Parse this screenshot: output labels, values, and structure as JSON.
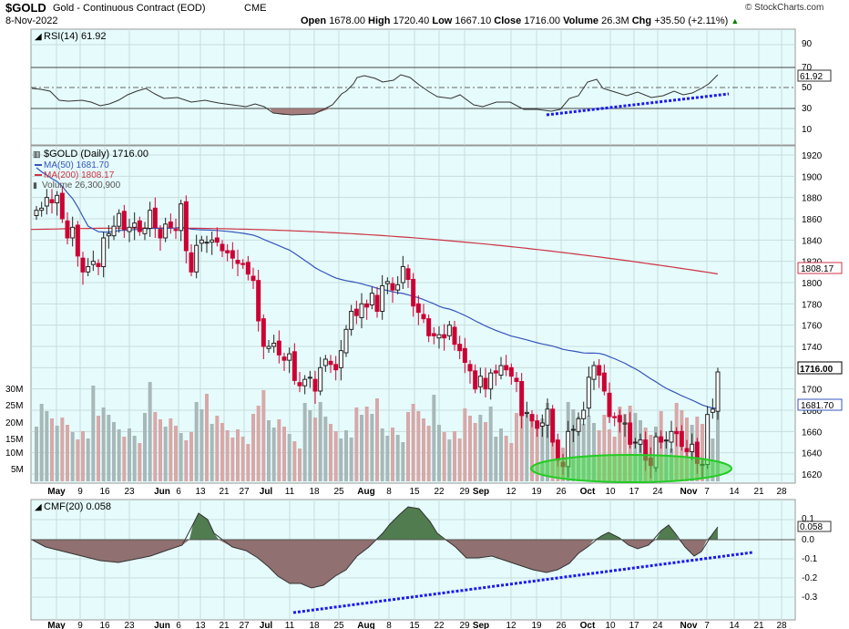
{
  "header": {
    "symbol": "$GOLD",
    "name": "Gold - Continuous Contract (EOD)",
    "exchange": "CME",
    "date": "8-Nov-2022",
    "watermark": "© StockCharts.com",
    "open_label": "Open",
    "open": "1678.00",
    "high_label": "High",
    "high": "1720.40",
    "low_label": "Low",
    "low": "1667.10",
    "close_label": "Close",
    "close": "1716.00",
    "volume_label": "Volume",
    "volume": "26.3M",
    "chg_label": "Chg",
    "chg": "+35.50 (+2.11%)",
    "up_color": "#008000",
    "down_color": "#cc0033"
  },
  "rsi": {
    "label": "RSI(14) 61.92",
    "value_badge": "61.92",
    "ticks": [
      "90",
      "70",
      "50",
      "30",
      "10"
    ],
    "overbought": 70,
    "oversold": 30,
    "mid": 50,
    "values": [
      48,
      47,
      47,
      47,
      44,
      42,
      41,
      41,
      41,
      40,
      39,
      38,
      38,
      37,
      38,
      39,
      39,
      41,
      42,
      42,
      44,
      44,
      43,
      42,
      41,
      40,
      39,
      38,
      37,
      37,
      34,
      33,
      33,
      33,
      33,
      33,
      33,
      34,
      35,
      38,
      42,
      48,
      56,
      62,
      67,
      68,
      68,
      67,
      64,
      63,
      64,
      63,
      63,
      63,
      63,
      62,
      61,
      61,
      61,
      62,
      63,
      64,
      64,
      64,
      63,
      62,
      61,
      60,
      59,
      56,
      51,
      48,
      46,
      43,
      42,
      42,
      42,
      40,
      38,
      38,
      36,
      36,
      36,
      35,
      35,
      36,
      37,
      40,
      44,
      46,
      48,
      49,
      49,
      46,
      44,
      42,
      40,
      44,
      44,
      44,
      44,
      44,
      44,
      44,
      44,
      44,
      44,
      44,
      54,
      61.92
    ]
  },
  "price": {
    "label": "$GOLD (Daily) 1716.00",
    "ma50_label": "MA(50) 1681.70",
    "ma200_label": "MA(200) 1808.17",
    "volume_label": "Volume 26,300,900",
    "ticks": [
      "1920",
      "1900",
      "1880",
      "1860",
      "1840",
      "1820",
      "1800",
      "1780",
      "1760",
      "1740",
      "1720",
      "1700",
      "1680",
      "1660",
      "1640",
      "1620"
    ],
    "last_badge": "1716.00",
    "ma50_badge": "1681.70",
    "ma200_badge": "1808.17",
    "ma50_color": "#3355bb",
    "ma200_color": "#cc3344",
    "volume_ticks": [
      "30M",
      "25M",
      "20M",
      "15M",
      "10M",
      "5M"
    ]
  },
  "cmf": {
    "label": "CMF(20) 0.058",
    "value_badge": "0.058",
    "ticks": [
      "0.1",
      "0.0",
      "-0.1",
      "-0.2",
      "-0.3"
    ]
  },
  "xaxis": {
    "labels": [
      "May",
      "9",
      "16",
      "23",
      "Jun",
      "6",
      "13",
      "21",
      "27",
      "Jul",
      "11",
      "18",
      "25",
      "Aug",
      "8",
      "15",
      "22",
      "29",
      "Sep",
      "12",
      "19",
      "26",
      "Oct",
      "10",
      "17",
      "24",
      "Nov",
      "7",
      "14",
      "21",
      "28"
    ]
  },
  "chart_data": {
    "type": "candlestick",
    "symbol": "$GOLD",
    "period": "daily",
    "dates": [
      "2022-05-02",
      "2022-05-03",
      "2022-05-04",
      "2022-05-05",
      "2022-05-06",
      "2022-05-09",
      "2022-05-10",
      "2022-05-11",
      "2022-05-12",
      "2022-05-13",
      "2022-05-16",
      "2022-05-17",
      "2022-05-18",
      "2022-05-19",
      "2022-05-20",
      "2022-05-23",
      "2022-05-24",
      "2022-05-25",
      "2022-05-26",
      "2022-05-27",
      "2022-05-31",
      "2022-06-01",
      "2022-06-02",
      "2022-06-03",
      "2022-06-06",
      "2022-06-07",
      "2022-06-08",
      "2022-06-09",
      "2022-06-10",
      "2022-06-13",
      "2022-06-14",
      "2022-06-15",
      "2022-06-16",
      "2022-06-17",
      "2022-06-21",
      "2022-06-22",
      "2022-06-23",
      "2022-06-24",
      "2022-06-27",
      "2022-06-28",
      "2022-06-29",
      "2022-06-30",
      "2022-07-01",
      "2022-07-05",
      "2022-07-06",
      "2022-07-07",
      "2022-07-08",
      "2022-07-11",
      "2022-07-12",
      "2022-07-13",
      "2022-07-14",
      "2022-07-15",
      "2022-07-18",
      "2022-07-19",
      "2022-07-20",
      "2022-07-21",
      "2022-07-22",
      "2022-07-25",
      "2022-07-26",
      "2022-07-27",
      "2022-07-28",
      "2022-07-29",
      "2022-08-01",
      "2022-08-02",
      "2022-08-03",
      "2022-08-04",
      "2022-08-05",
      "2022-08-08",
      "2022-08-09",
      "2022-08-10",
      "2022-08-11",
      "2022-08-12",
      "2022-08-15",
      "2022-08-16",
      "2022-08-17",
      "2022-08-18",
      "2022-08-19",
      "2022-08-22",
      "2022-08-23",
      "2022-08-24",
      "2022-08-25",
      "2022-08-26",
      "2022-08-29",
      "2022-08-30",
      "2022-08-31",
      "2022-09-01",
      "2022-09-02",
      "2022-09-06",
      "2022-09-07",
      "2022-09-08",
      "2022-09-09",
      "2022-09-12",
      "2022-09-13",
      "2022-09-14",
      "2022-09-15",
      "2022-09-16",
      "2022-09-19",
      "2022-09-20",
      "2022-09-21",
      "2022-09-22",
      "2022-09-23",
      "2022-09-26",
      "2022-09-27",
      "2022-09-28",
      "2022-09-29",
      "2022-09-30",
      "2022-10-03",
      "2022-10-04",
      "2022-10-05",
      "2022-10-06",
      "2022-10-07",
      "2022-10-10",
      "2022-10-11",
      "2022-10-12",
      "2022-10-13",
      "2022-10-14",
      "2022-10-17",
      "2022-10-18",
      "2022-10-19",
      "2022-10-20",
      "2022-10-21",
      "2022-10-24",
      "2022-10-25",
      "2022-10-26",
      "2022-10-27",
      "2022-10-28",
      "2022-10-31",
      "2022-11-01",
      "2022-11-02",
      "2022-11-03",
      "2022-11-04",
      "2022-11-07",
      "2022-11-08"
    ],
    "close": [
      1868,
      1870,
      1880,
      1875,
      1882,
      1860,
      1842,
      1852,
      1825,
      1810,
      1815,
      1820,
      1815,
      1842,
      1846,
      1853,
      1865,
      1850,
      1852,
      1856,
      1848,
      1851,
      1868,
      1852,
      1842,
      1855,
      1852,
      1849,
      1874,
      1830,
      1810,
      1835,
      1840,
      1838,
      1840,
      1838,
      1830,
      1828,
      1823,
      1818,
      1817,
      1808,
      1802,
      1764,
      1740,
      1740,
      1743,
      1732,
      1727,
      1733,
      1708,
      1703,
      1709,
      1711,
      1698,
      1720,
      1728,
      1723,
      1718,
      1736,
      1756,
      1773,
      1769,
      1780,
      1777,
      1790,
      1773,
      1797,
      1801,
      1793,
      1798,
      1815,
      1803,
      1778,
      1772,
      1766,
      1750,
      1750,
      1751,
      1748,
      1760,
      1742,
      1736,
      1725,
      1717,
      1700,
      1712,
      1700,
      1715,
      1715,
      1722,
      1718,
      1712,
      1707,
      1675,
      1678,
      1670,
      1663,
      1668,
      1681,
      1650,
      1633,
      1627,
      1660,
      1662,
      1672,
      1680,
      1711,
      1722,
      1713,
      1698,
      1674,
      1673,
      1669,
      1668,
      1648,
      1650,
      1652,
      1633,
      1628,
      1655,
      1650,
      1652,
      1660,
      1658,
      1646,
      1641,
      1648,
      1630,
      1629,
      1676,
      1681,
      1716
    ],
    "ma50_last": 1681.7,
    "ma200_last": 1808.17,
    "rsi14_last": 61.92,
    "cmf20_last": 0.058,
    "volume_last": 26300900,
    "ylim": [
      1610,
      1930
    ],
    "volume_ylim_millions": [
      0,
      30
    ],
    "rsi_ylim": [
      0,
      100
    ],
    "cmf_ylim": [
      -0.35,
      0.15
    ]
  }
}
